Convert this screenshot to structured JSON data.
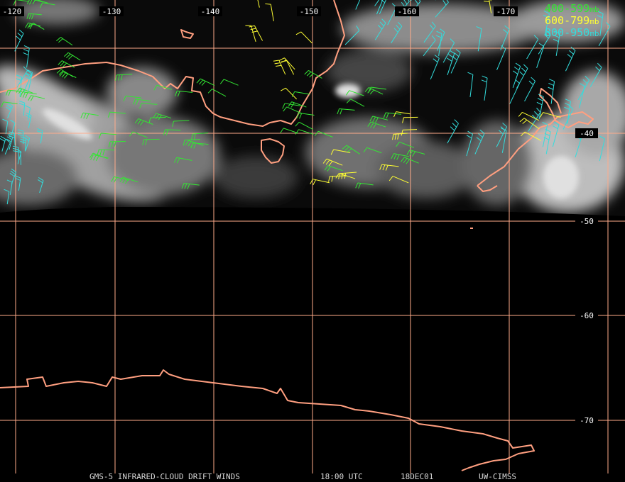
{
  "map": {
    "longitude_labels": [
      "-120",
      "-130",
      "-140",
      "-150",
      "-160",
      "-170"
    ],
    "latitude_labels": [
      "-40",
      "-50",
      "-60",
      "-70"
    ],
    "legend": [
      {
        "range": "400-599",
        "unit": "mb",
        "color": "#33e633"
      },
      {
        "range": "600-799",
        "unit": "mb",
        "color": "#ffff33"
      },
      {
        "range": "800-950",
        "unit": "mb",
        "color": "#33dddd"
      }
    ],
    "footer": {
      "product": "GMS-5 INFRARED-CLOUD DRIFT WINDS",
      "time": "18:00 UTC",
      "date": "18DEC01",
      "source": "UW-CIMSS"
    }
  }
}
